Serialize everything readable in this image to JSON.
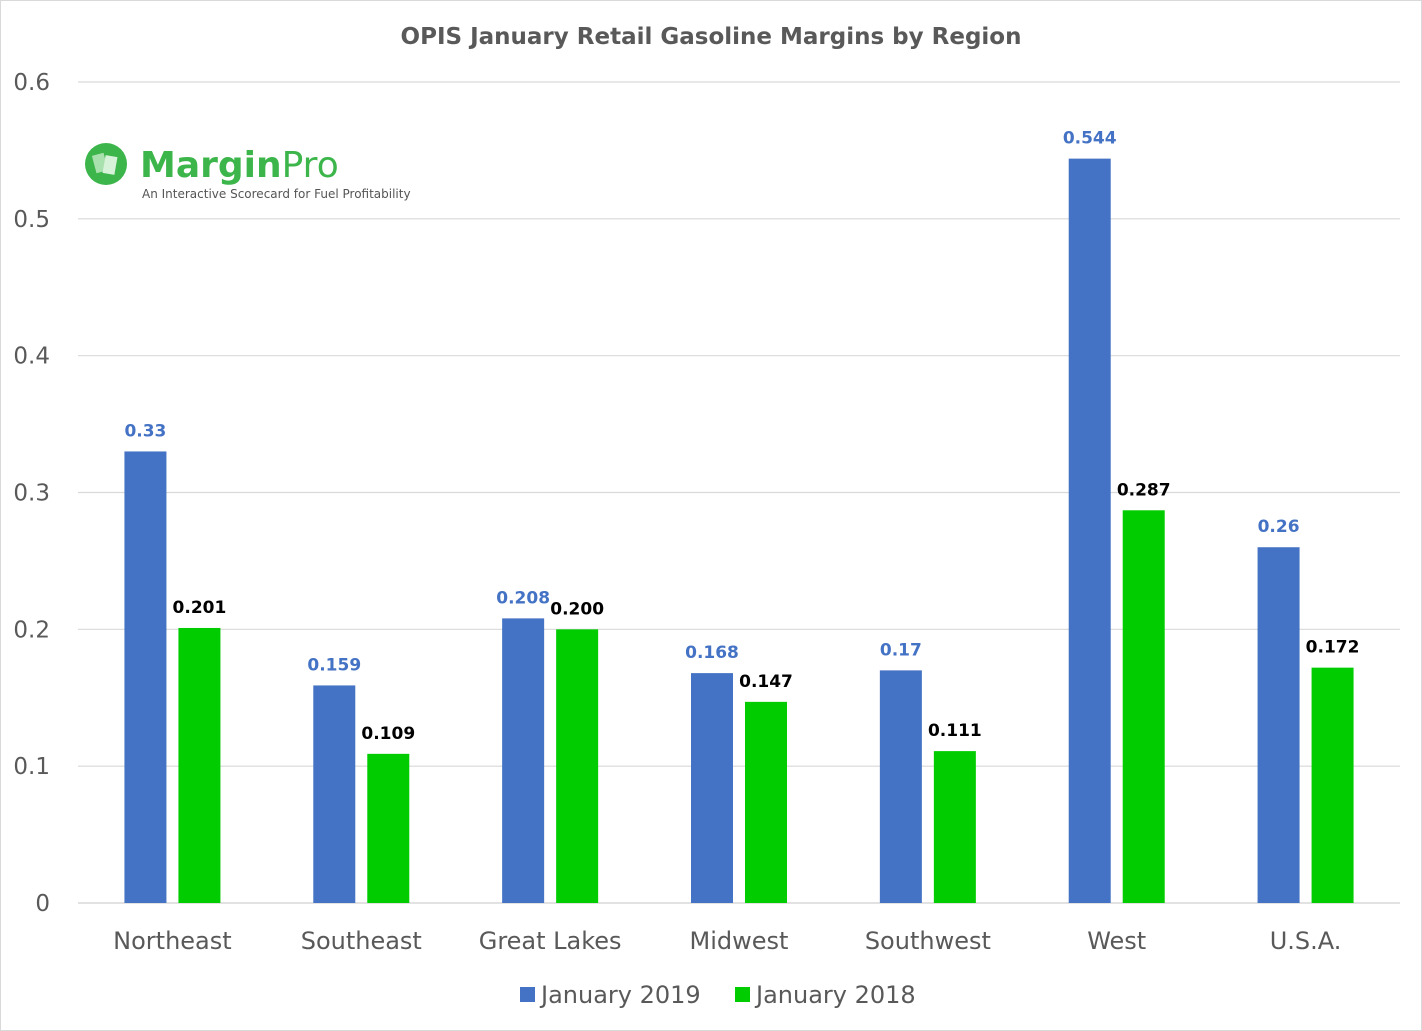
{
  "chart_data": {
    "type": "bar",
    "title": "OPIS January Retail Gasoline Margins by Region",
    "xlabel": "",
    "ylabel": "",
    "ylim": [
      0,
      0.6
    ],
    "yticks": [
      "0",
      "0.1",
      "0.2",
      "0.3",
      "0.4",
      "0.5",
      "0.6"
    ],
    "grid": true,
    "legend_position": "bottom",
    "categories": [
      "Northeast",
      "Southeast",
      "Great Lakes",
      "Midwest",
      "Southwest",
      "West",
      "U.S.A."
    ],
    "series": [
      {
        "name": "January 2019",
        "color": "#4472c4",
        "label_color": "#4472c4",
        "values": [
          0.33,
          0.159,
          0.208,
          0.168,
          0.17,
          0.544,
          0.26
        ],
        "labels": [
          "0.33",
          "0.159",
          "0.208",
          "0.168",
          "0.17",
          "0.544",
          "0.26"
        ]
      },
      {
        "name": "January 2018",
        "color": "#00cc00",
        "label_color": "#000000",
        "values": [
          0.201,
          0.109,
          0.2,
          0.147,
          0.111,
          0.287,
          0.172
        ],
        "labels": [
          "0.201",
          "0.109",
          "0.200",
          "0.147",
          "0.111",
          "0.287",
          "0.172"
        ]
      }
    ]
  },
  "logo": {
    "brand_bold": "Margin",
    "brand_light": "Pro",
    "tagline": "An Interactive Scorecard for Fuel Profitability",
    "color": "#3cb54a"
  }
}
